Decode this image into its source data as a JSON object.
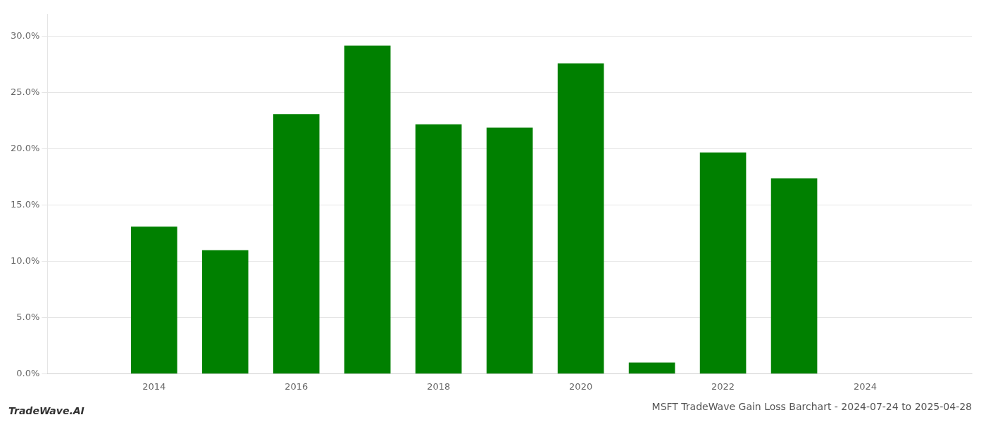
{
  "chart_data": {
    "type": "bar",
    "title": "MSFT TradeWave Gain Loss Barchart - 2024-07-24 to 2025-04-28",
    "annotations": [
      "TradeWave.AI"
    ],
    "x": [
      2014,
      2015,
      2016,
      2017,
      2018,
      2019,
      2020,
      2021,
      2022,
      2023,
      2024
    ],
    "values": [
      0.131,
      0.11,
      0.231,
      0.292,
      0.222,
      0.219,
      0.276,
      0.01,
      0.197,
      0.174,
      0.0
    ],
    "color": "#008000",
    "xlim": [
      2012.5,
      2025.5
    ],
    "xticks": [
      2014,
      2016,
      2018,
      2020,
      2022,
      2024
    ],
    "ylim": [
      0,
      0.32
    ],
    "yticks": [
      {
        "value": 0.0,
        "label": "0.0%"
      },
      {
        "value": 0.05,
        "label": "5.0%"
      },
      {
        "value": 0.1,
        "label": "10.0%"
      },
      {
        "value": 0.15,
        "label": "15.0%"
      },
      {
        "value": 0.2,
        "label": "20.0%"
      },
      {
        "value": 0.25,
        "label": "25.0%"
      },
      {
        "value": 0.3,
        "label": "30.0%"
      }
    ],
    "grid": true
  }
}
